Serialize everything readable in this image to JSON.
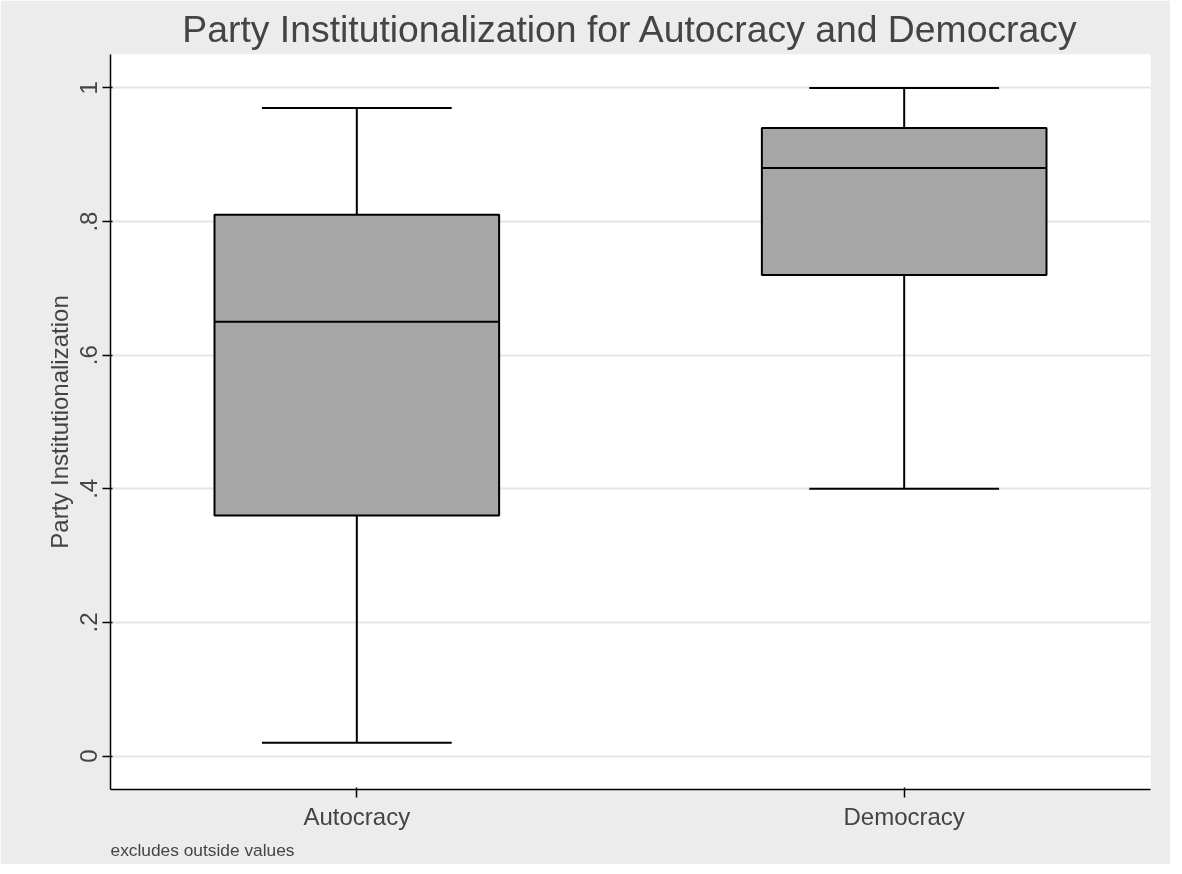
{
  "chart_data": {
    "type": "box",
    "title": "Party Institutionalization for Autocracy and Democracy",
    "ylabel": "Party Institutionalization",
    "categories": [
      "Autocracy",
      "Democracy"
    ],
    "series": [
      {
        "color": "#a6a6a6",
        "boxes": [
          {
            "low": 0.02,
            "q1": 0.36,
            "median": 0.65,
            "q3": 0.81,
            "high": 0.97
          },
          {
            "low": 0.4,
            "q1": 0.72,
            "median": 0.88,
            "q3": 0.94,
            "high": 1.0
          }
        ]
      }
    ],
    "ylim": [
      -0.05,
      1.05
    ],
    "yticks": [
      0,
      {
        "value": 0.2,
        "label": ".2"
      },
      {
        "value": 0.4,
        "label": ".4"
      },
      {
        "value": 0.6,
        "label": ".6"
      },
      {
        "value": 0.8,
        "label": ".8"
      },
      1
    ],
    "grid": "y",
    "annotations": [
      "excludes outside values"
    ]
  }
}
